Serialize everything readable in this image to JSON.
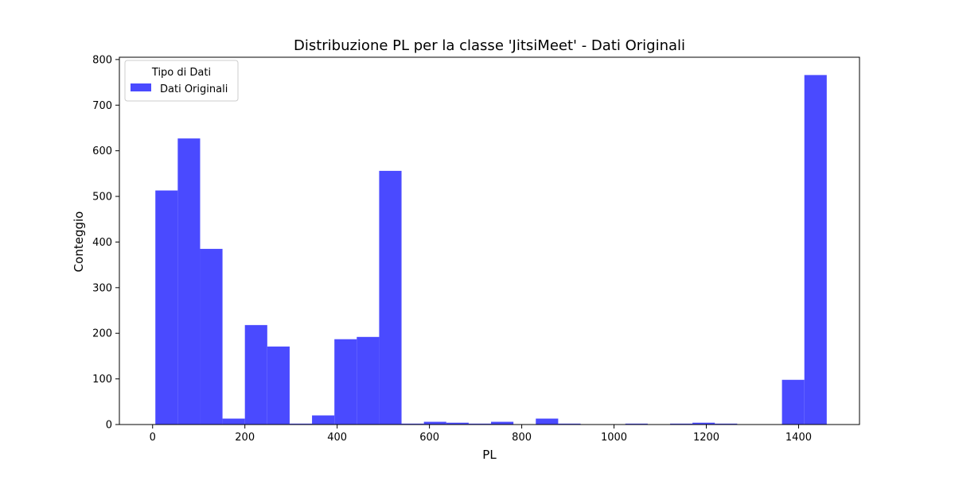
{
  "chart_data": {
    "type": "bar",
    "title": "Distribuzione PL per la classe 'JitsiMeet' - Dati Originali",
    "xlabel": "PL",
    "ylabel": "Conteggio",
    "xlim": [
      -72,
      1532
    ],
    "ylim": [
      0,
      805
    ],
    "xticks": [
      0,
      200,
      400,
      600,
      800,
      1000,
      1200,
      1400
    ],
    "yticks": [
      0,
      100,
      200,
      300,
      400,
      500,
      600,
      700,
      800
    ],
    "bin_edges": [
      6,
      54.5,
      103,
      151.5,
      200,
      248.5,
      297,
      345.5,
      394,
      442.5,
      491,
      539.5,
      588,
      636.5,
      685,
      733.5,
      782,
      830.5,
      879,
      927.5,
      976,
      1024.5,
      1073,
      1121.5,
      1170,
      1218.5,
      1267,
      1315.5,
      1364,
      1412.5,
      1461
    ],
    "series": [
      {
        "name": "Dati Originali",
        "color": "#4a4aff",
        "values": [
          513,
          627,
          385,
          13,
          218,
          171,
          2,
          20,
          187,
          192,
          556,
          2,
          6,
          4,
          2,
          6,
          0,
          13,
          2,
          0,
          0,
          2,
          0,
          2,
          4,
          2,
          0,
          0,
          98,
          766
        ]
      }
    ],
    "legend": {
      "title": "Tipo di Dati",
      "position": "top-left"
    },
    "grid": false
  }
}
